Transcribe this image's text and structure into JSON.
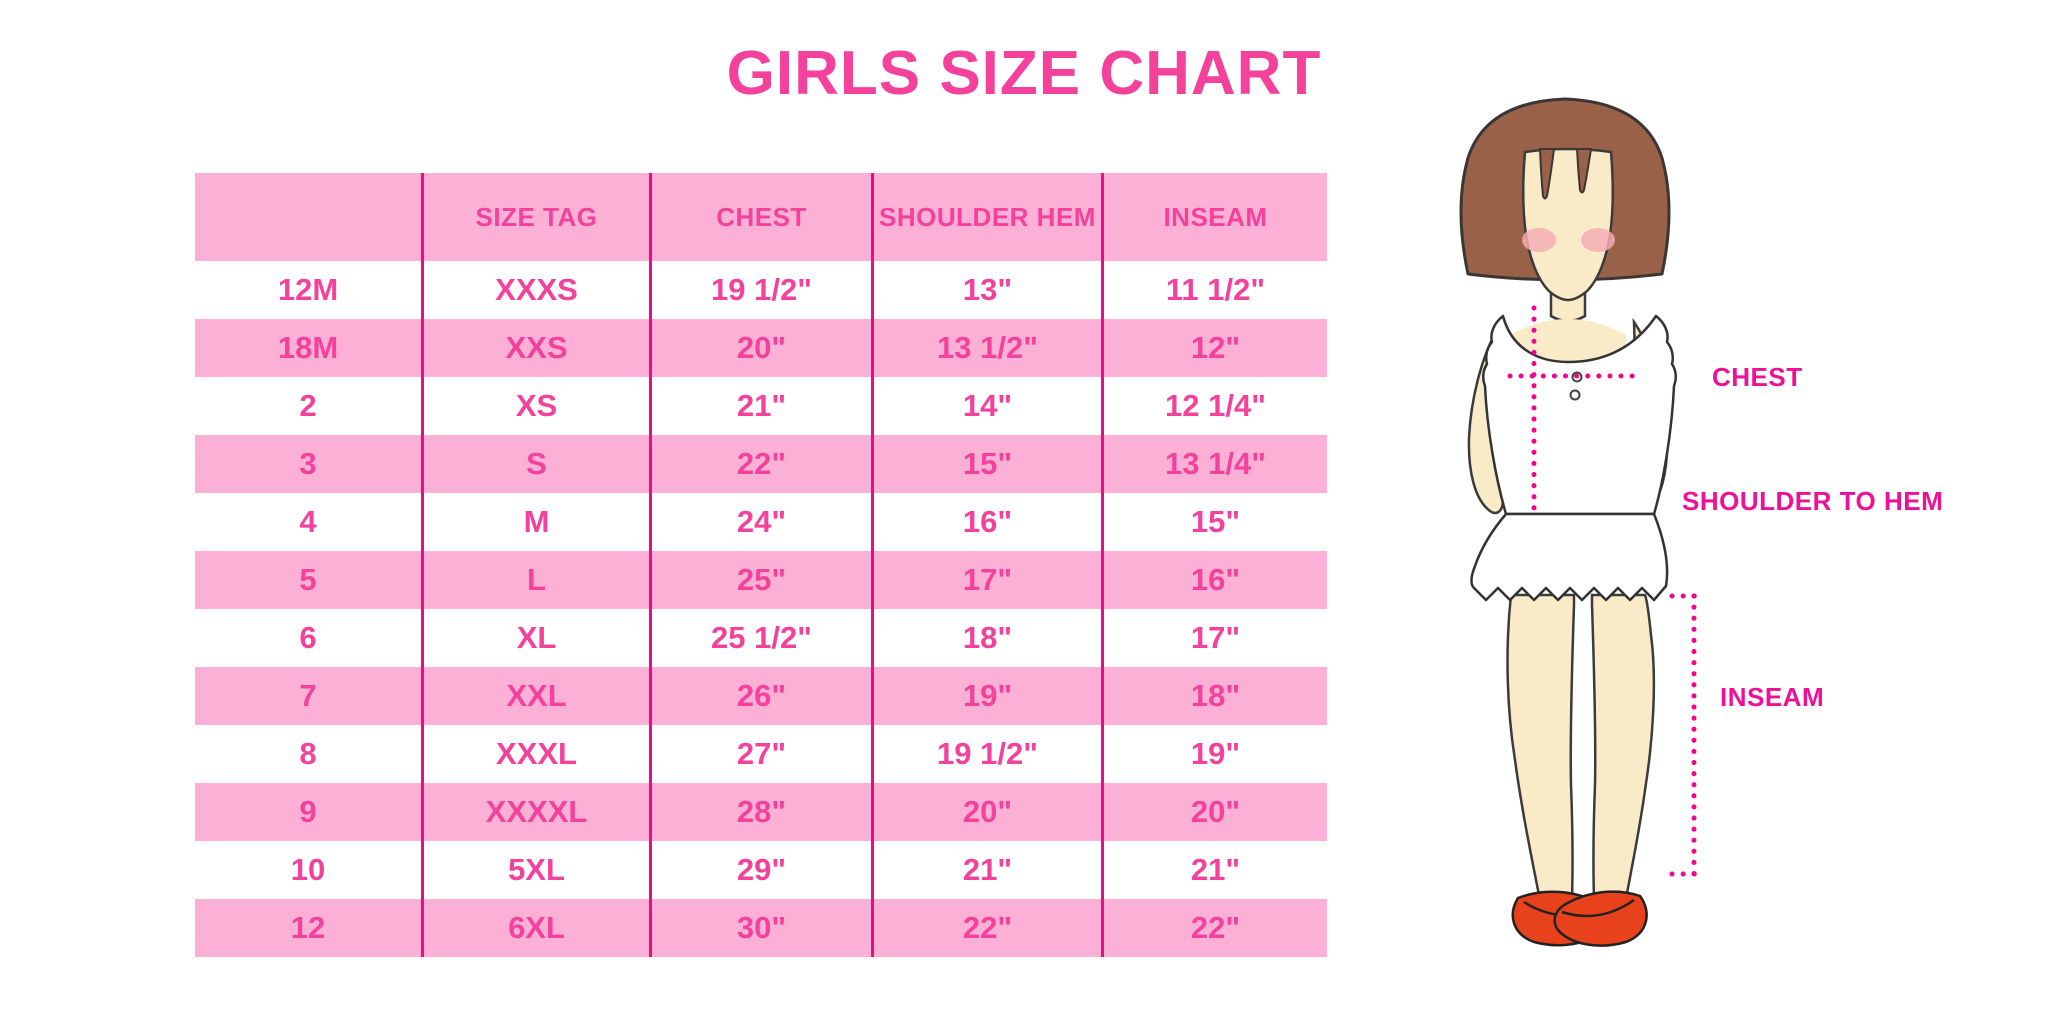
{
  "title": "GIRLS SIZE CHART",
  "chart_data": {
    "type": "table",
    "title": "GIRLS SIZE CHART",
    "columns": [
      "",
      "SIZE TAG",
      "CHEST",
      "SHOULDER HEM",
      "INSEAM"
    ],
    "rows": [
      [
        "12M",
        "XXXS",
        "19 1/2\"",
        "13\"",
        "11 1/2\""
      ],
      [
        "18M",
        "XXS",
        "20\"",
        "13 1/2\"",
        "12\""
      ],
      [
        "2",
        "XS",
        "21\"",
        "14\"",
        "12 1/4\""
      ],
      [
        "3",
        "S",
        "22\"",
        "15\"",
        "13 1/4\""
      ],
      [
        "4",
        "M",
        "24\"",
        "16\"",
        "15\""
      ],
      [
        "5",
        "L",
        "25\"",
        "17\"",
        "16\""
      ],
      [
        "6",
        "XL",
        "25 1/2\"",
        "18\"",
        "17\""
      ],
      [
        "7",
        "XXL",
        "26\"",
        "19\"",
        "18\""
      ],
      [
        "8",
        "XXXL",
        "27\"",
        "19 1/2\"",
        "19\""
      ],
      [
        "9",
        "XXXXL",
        "28\"",
        "20\"",
        "20\""
      ],
      [
        "10",
        "5XL",
        "29\"",
        "21\"",
        "21\""
      ],
      [
        "12",
        "6XL",
        "30\"",
        "22\"",
        "22\""
      ]
    ]
  },
  "figure": {
    "labels": {
      "chest": "CHEST",
      "shoulder_to_hem": "SHOULDER TO HEM",
      "inseam": "INSEAM"
    }
  },
  "colors": {
    "row_pink": "#FDB0D6",
    "table_text_pink": "#F4419C",
    "divider_magenta": "#E90C8B",
    "dotted_line_magenta": "#F0068E",
    "label_pink": "#EE1197",
    "title_pink": "#F4419C",
    "hair_brown": "#9A6149",
    "skin": "#FAEBC8",
    "blush": "#F5AEB5",
    "dress_white": "#FFFFFF",
    "shoe_red": "#E8421C",
    "background": "#FFFFFF"
  }
}
